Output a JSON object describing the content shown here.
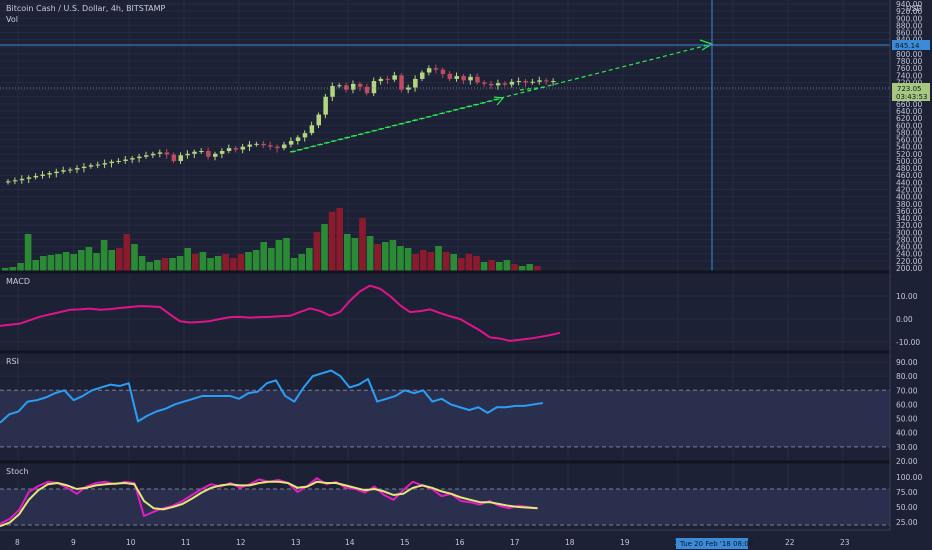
{
  "header": {
    "symbol_title": "Bitcoin Cash / U.S. Dollar, 4h, BITSTAMP",
    "volume_label": "Vol"
  },
  "price_axis": {
    "currency": "USD",
    "ticks": [
      "940.00",
      "920.00",
      "900.00",
      "880.00",
      "860.00",
      "840.00",
      "820.00",
      "800.00",
      "780.00",
      "760.00",
      "740.00",
      "720.00",
      "700.00",
      "680.00",
      "660.00",
      "640.00",
      "620.00",
      "600.00",
      "580.00",
      "560.00",
      "540.00",
      "520.00",
      "500.00",
      "480.00",
      "460.00",
      "440.00",
      "420.00",
      "400.00",
      "380.00",
      "360.00",
      "340.00",
      "320.00",
      "300.00",
      "280.00",
      "260.00",
      "240.00",
      "220.00",
      "200.00"
    ],
    "crosshair_tag": "845.14",
    "last_price_tag": "723.05",
    "countdown_tag": "03:43:53"
  },
  "macd": {
    "title": "MACD",
    "ticks": [
      "10.00",
      "0.00",
      "-10.00"
    ]
  },
  "rsi": {
    "title": "RSI",
    "ticks": [
      "90.00",
      "80.00",
      "70.00",
      "60.00",
      "50.00",
      "40.00",
      "30.00",
      "20.00"
    ]
  },
  "stoch": {
    "title": "Stoch",
    "ticks": [
      "100.00",
      "75.00",
      "50.00",
      "25.00"
    ]
  },
  "time_axis": {
    "labels": [
      "8",
      "9",
      "10",
      "11",
      "12",
      "13",
      "14",
      "15",
      "16",
      "17",
      "18",
      "19",
      "20",
      "21",
      "22",
      "23"
    ],
    "crosshair_tag": "Tue 20 Feb '18 08:00"
  },
  "colors": {
    "background": "#1d2135",
    "up": "#2b8a34",
    "down": "#8b1b2c",
    "up_candle": "#b3d67f",
    "down_candle": "#c04a62",
    "macd": "#e0148a",
    "rsi": "#2a9df4",
    "stoch_k": "#e51bc6",
    "stoch_d": "#e3e876",
    "trend": "#2ee84f",
    "crosshair": "#3a8bd8"
  }
}
